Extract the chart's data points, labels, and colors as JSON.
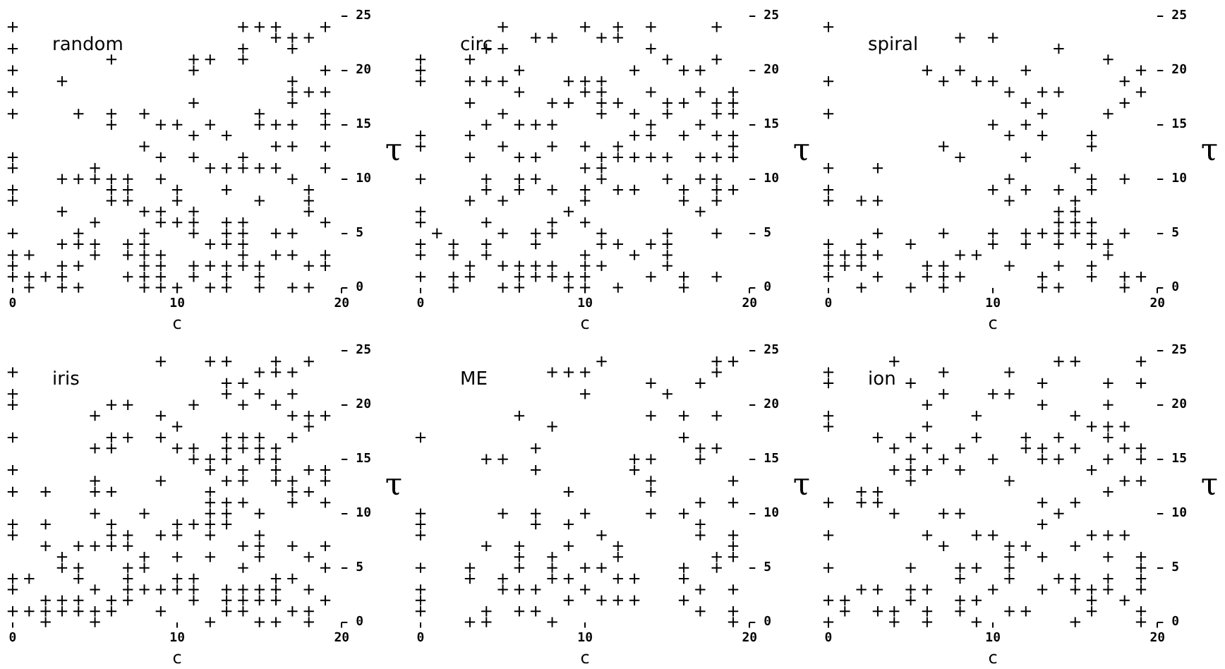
{
  "chart_data": [
    {
      "type": "scatter",
      "title": "random",
      "xlabel": "c",
      "ylabel": "τ",
      "color": "#000000",
      "marker": "cross",
      "grid": false,
      "xlim": [
        0,
        20
      ],
      "xticks": [
        0,
        10,
        20
      ],
      "ylim": [
        0,
        25
      ],
      "yticks": [
        0,
        5,
        10,
        15,
        20,
        25
      ],
      "x": [
        0,
        14,
        15,
        16,
        19,
        16,
        17,
        18,
        0,
        14,
        17,
        6,
        11,
        12,
        14,
        0,
        11,
        19,
        3,
        17,
        0,
        17,
        18,
        19,
        11,
        17,
        0,
        4,
        6,
        8,
        15,
        19,
        6,
        9,
        10,
        12,
        15,
        16,
        17,
        19,
        11,
        13,
        8,
        16,
        17,
        19,
        0,
        9,
        11,
        14,
        0,
        5,
        12,
        13,
        14,
        15,
        16,
        19,
        3,
        4,
        5,
        6,
        7,
        9,
        17,
        0,
        6,
        7,
        10,
        13,
        18,
        0,
        6,
        7,
        10,
        15,
        18,
        3,
        8,
        9,
        11,
        18,
        5,
        9,
        10,
        11,
        13,
        14,
        19,
        0,
        4,
        8,
        11,
        13,
        14,
        16,
        17,
        3,
        4,
        5,
        7,
        8,
        12,
        13,
        14,
        0,
        1,
        5,
        7,
        8,
        9,
        14,
        16,
        17,
        19,
        0,
        3,
        4,
        8,
        9,
        11,
        12,
        13,
        14,
        15,
        18,
        19,
        0,
        1,
        2,
        3,
        7,
        8,
        9,
        11,
        13,
        15,
        1,
        3,
        4,
        8,
        9,
        10,
        12,
        13,
        15,
        17,
        18
      ],
      "values": [
        24,
        24,
        24,
        24,
        24,
        23,
        23,
        23,
        22,
        22,
        22,
        21,
        21,
        21,
        21,
        20,
        20,
        20,
        19,
        19,
        18,
        18,
        18,
        18,
        17,
        17,
        16,
        16,
        16,
        16,
        16,
        16,
        15,
        15,
        15,
        15,
        15,
        15,
        15,
        15,
        14,
        14,
        13,
        13,
        13,
        13,
        12,
        12,
        12,
        12,
        11,
        11,
        11,
        11,
        11,
        11,
        11,
        11,
        10,
        10,
        10,
        10,
        10,
        10,
        10,
        9,
        9,
        9,
        9,
        9,
        9,
        8,
        8,
        8,
        8,
        8,
        8,
        7,
        7,
        7,
        7,
        7,
        6,
        6,
        6,
        6,
        6,
        6,
        6,
        5,
        5,
        5,
        5,
        5,
        5,
        5,
        5,
        4,
        4,
        4,
        4,
        4,
        4,
        4,
        4,
        3,
        3,
        3,
        3,
        3,
        3,
        3,
        3,
        3,
        3,
        2,
        2,
        2,
        2,
        2,
        2,
        2,
        2,
        2,
        2,
        2,
        2,
        1,
        1,
        1,
        1,
        1,
        1,
        1,
        1,
        1,
        1,
        0,
        0,
        0,
        0,
        0,
        0,
        0,
        0,
        0,
        0,
        0
      ]
    },
    {
      "type": "scatter",
      "title": "circ",
      "xlabel": "c",
      "ylabel": "τ",
      "color": "#000000",
      "marker": "cross",
      "grid": false,
      "xlim": [
        0,
        20
      ],
      "xticks": [
        0,
        10,
        20
      ],
      "ylim": [
        0,
        25
      ],
      "yticks": [
        0,
        5,
        10,
        15,
        20,
        25
      ],
      "x": [
        5,
        10,
        12,
        14,
        18,
        7,
        8,
        11,
        12,
        4,
        5,
        14,
        0,
        3,
        15,
        18,
        0,
        6,
        13,
        16,
        17,
        0,
        3,
        4,
        5,
        9,
        10,
        11,
        6,
        10,
        11,
        14,
        17,
        19,
        3,
        8,
        9,
        11,
        12,
        15,
        16,
        18,
        19,
        5,
        11,
        13,
        15,
        18,
        19,
        4,
        6,
        7,
        8,
        14,
        17,
        0,
        3,
        13,
        14,
        16,
        18,
        19,
        0,
        5,
        8,
        10,
        12,
        19,
        3,
        6,
        7,
        11,
        12,
        13,
        14,
        15,
        17,
        18,
        19,
        10,
        11,
        0,
        4,
        6,
        7,
        11,
        15,
        17,
        18,
        4,
        6,
        8,
        10,
        12,
        13,
        16,
        18,
        19,
        3,
        5,
        10,
        16,
        18,
        0,
        9,
        17,
        0,
        4,
        8,
        10,
        1,
        5,
        7,
        8,
        11,
        15,
        18,
        0,
        2,
        4,
        7,
        11,
        12,
        14,
        15,
        0,
        2,
        4,
        10,
        13,
        15,
        3,
        5,
        6,
        7,
        8,
        10,
        11,
        15,
        0,
        2,
        3,
        6,
        7,
        8,
        9,
        10,
        14,
        16,
        18,
        2,
        5,
        6,
        9,
        10,
        12,
        16
      ],
      "values": [
        24,
        24,
        24,
        24,
        24,
        23,
        23,
        23,
        23,
        22,
        22,
        22,
        21,
        21,
        21,
        21,
        20,
        20,
        20,
        20,
        20,
        19,
        19,
        19,
        19,
        19,
        19,
        19,
        18,
        18,
        18,
        18,
        18,
        18,
        17,
        17,
        17,
        17,
        17,
        17,
        17,
        17,
        17,
        16,
        16,
        16,
        16,
        16,
        16,
        15,
        15,
        15,
        15,
        15,
        15,
        14,
        14,
        14,
        14,
        14,
        14,
        14,
        13,
        13,
        13,
        13,
        13,
        13,
        12,
        12,
        12,
        12,
        12,
        12,
        12,
        12,
        12,
        12,
        12,
        11,
        11,
        10,
        10,
        10,
        10,
        10,
        10,
        10,
        10,
        9,
        9,
        9,
        9,
        9,
        9,
        9,
        9,
        9,
        8,
        8,
        8,
        8,
        8,
        7,
        7,
        7,
        6,
        6,
        6,
        6,
        5,
        5,
        5,
        5,
        5,
        5,
        5,
        4,
        4,
        4,
        4,
        4,
        4,
        4,
        4,
        3,
        3,
        3,
        3,
        3,
        3,
        2,
        2,
        2,
        2,
        2,
        2,
        2,
        2,
        1,
        1,
        1,
        1,
        1,
        1,
        1,
        1,
        1,
        1,
        1,
        0,
        0,
        0,
        0,
        0,
        0,
        0
      ]
    },
    {
      "type": "scatter",
      "title": "spiral",
      "xlabel": "c",
      "ylabel": "τ",
      "color": "#000000",
      "marker": "cross",
      "grid": false,
      "xlim": [
        0,
        20
      ],
      "xticks": [
        0,
        10,
        20
      ],
      "ylim": [
        0,
        25
      ],
      "yticks": [
        0,
        5,
        10,
        15,
        20,
        25
      ],
      "x": [
        0,
        8,
        10,
        14,
        17,
        6,
        8,
        12,
        19,
        0,
        7,
        9,
        10,
        18,
        11,
        13,
        14,
        19,
        12,
        18,
        0,
        13,
        17,
        10,
        12,
        11,
        13,
        16,
        7,
        16,
        8,
        12,
        0,
        3,
        15,
        11,
        16,
        18,
        0,
        10,
        12,
        14,
        16,
        0,
        2,
        3,
        11,
        15,
        14,
        15,
        14,
        15,
        16,
        3,
        7,
        10,
        12,
        13,
        14,
        15,
        16,
        18,
        0,
        2,
        5,
        10,
        12,
        14,
        16,
        17,
        0,
        1,
        2,
        3,
        8,
        9,
        17,
        0,
        1,
        2,
        6,
        7,
        11,
        14,
        16,
        0,
        3,
        6,
        7,
        8,
        13,
        16,
        18,
        19,
        2,
        5,
        7,
        13,
        14,
        18
      ],
      "values": [
        24,
        23,
        23,
        22,
        21,
        20,
        20,
        20,
        20,
        19,
        19,
        19,
        19,
        19,
        18,
        18,
        18,
        18,
        17,
        17,
        16,
        16,
        16,
        15,
        15,
        14,
        14,
        14,
        13,
        13,
        12,
        12,
        11,
        11,
        11,
        10,
        10,
        10,
        9,
        9,
        9,
        9,
        9,
        8,
        8,
        8,
        8,
        8,
        7,
        7,
        6,
        6,
        6,
        5,
        5,
        5,
        5,
        5,
        5,
        5,
        5,
        5,
        4,
        4,
        4,
        4,
        4,
        4,
        4,
        4,
        3,
        3,
        3,
        3,
        3,
        3,
        3,
        2,
        2,
        2,
        2,
        2,
        2,
        2,
        2,
        1,
        1,
        1,
        1,
        1,
        1,
        1,
        1,
        1,
        0,
        0,
        0,
        0,
        0,
        0
      ]
    },
    {
      "type": "scatter",
      "title": "iris",
      "xlabel": "c",
      "ylabel": "τ",
      "color": "#000000",
      "marker": "cross",
      "grid": false,
      "xlim": [
        0,
        20
      ],
      "xticks": [
        0,
        10,
        20
      ],
      "ylim": [
        0,
        25
      ],
      "yticks": [
        0,
        5,
        10,
        15,
        20,
        25
      ],
      "x": [
        9,
        12,
        13,
        16,
        18,
        0,
        15,
        16,
        17,
        13,
        14,
        0,
        13,
        15,
        17,
        0,
        6,
        7,
        11,
        14,
        16,
        5,
        9,
        17,
        18,
        19,
        10,
        18,
        0,
        6,
        7,
        9,
        13,
        14,
        15,
        17,
        5,
        6,
        10,
        11,
        13,
        14,
        15,
        16,
        11,
        12,
        13,
        15,
        16,
        0,
        12,
        14,
        16,
        18,
        19,
        5,
        9,
        13,
        14,
        16,
        17,
        19,
        0,
        2,
        5,
        6,
        12,
        17,
        18,
        12,
        13,
        14,
        17,
        19,
        5,
        8,
        12,
        13,
        15,
        0,
        2,
        6,
        10,
        11,
        12,
        13,
        0,
        6,
        7,
        9,
        10,
        12,
        15,
        2,
        4,
        5,
        6,
        7,
        14,
        15,
        17,
        19,
        3,
        8,
        10,
        12,
        15,
        18,
        3,
        4,
        7,
        8,
        14,
        19,
        0,
        1,
        4,
        7,
        10,
        11,
        16,
        17,
        0,
        5,
        7,
        8,
        9,
        10,
        11,
        13,
        14,
        15,
        16,
        18,
        2,
        3,
        4,
        6,
        7,
        11,
        13,
        14,
        15,
        16,
        19,
        0,
        1,
        2,
        3,
        4,
        5,
        6,
        9,
        13,
        14,
        17,
        18,
        2,
        5,
        12,
        15,
        16,
        18
      ],
      "values": [
        24,
        24,
        24,
        24,
        24,
        23,
        23,
        23,
        23,
        22,
        22,
        21,
        21,
        21,
        21,
        20,
        20,
        20,
        20,
        20,
        20,
        19,
        19,
        19,
        19,
        19,
        18,
        18,
        17,
        17,
        17,
        17,
        17,
        17,
        17,
        17,
        16,
        16,
        16,
        16,
        16,
        16,
        16,
        16,
        15,
        15,
        15,
        15,
        15,
        14,
        14,
        14,
        14,
        14,
        14,
        13,
        13,
        13,
        13,
        13,
        13,
        13,
        12,
        12,
        12,
        12,
        12,
        12,
        12,
        11,
        11,
        11,
        11,
        11,
        10,
        10,
        10,
        10,
        10,
        9,
        9,
        9,
        9,
        9,
        9,
        9,
        8,
        8,
        8,
        8,
        8,
        8,
        8,
        7,
        7,
        7,
        7,
        7,
        7,
        7,
        7,
        7,
        6,
        6,
        6,
        6,
        6,
        6,
        5,
        5,
        5,
        5,
        5,
        5,
        4,
        4,
        4,
        4,
        4,
        4,
        4,
        4,
        3,
        3,
        3,
        3,
        3,
        3,
        3,
        3,
        3,
        3,
        3,
        3,
        2,
        2,
        2,
        2,
        2,
        2,
        2,
        2,
        2,
        2,
        2,
        1,
        1,
        1,
        1,
        1,
        1,
        1,
        1,
        1,
        1,
        1,
        1,
        0,
        0,
        0,
        0,
        0,
        0
      ]
    },
    {
      "type": "scatter",
      "title": "ME",
      "xlabel": "c",
      "ylabel": "τ",
      "color": "#000000",
      "marker": "cross",
      "grid": false,
      "xlim": [
        0,
        20
      ],
      "xticks": [
        0,
        10,
        20
      ],
      "ylim": [
        0,
        25
      ],
      "yticks": [
        0,
        5,
        10,
        15,
        20,
        25
      ],
      "x": [
        11,
        18,
        19,
        8,
        9,
        10,
        18,
        14,
        17,
        10,
        15,
        6,
        14,
        16,
        18,
        8,
        0,
        16,
        7,
        17,
        18,
        4,
        5,
        13,
        14,
        17,
        7,
        13,
        14,
        19,
        9,
        14,
        17,
        19,
        0,
        5,
        7,
        10,
        14,
        16,
        0,
        7,
        9,
        17,
        0,
        11,
        17,
        19,
        4,
        6,
        9,
        12,
        19,
        6,
        8,
        12,
        18,
        19,
        0,
        3,
        6,
        8,
        10,
        11,
        16,
        18,
        3,
        5,
        8,
        9,
        12,
        13,
        16,
        0,
        5,
        6,
        7,
        10,
        17,
        19,
        0,
        9,
        11,
        12,
        13,
        16,
        0,
        4,
        6,
        7,
        17,
        19,
        3,
        4,
        8,
        19
      ],
      "values": [
        24,
        24,
        24,
        23,
        23,
        23,
        23,
        22,
        22,
        21,
        21,
        19,
        19,
        19,
        19,
        18,
        17,
        17,
        16,
        16,
        16,
        15,
        15,
        15,
        15,
        15,
        14,
        14,
        13,
        13,
        12,
        12,
        11,
        11,
        10,
        10,
        10,
        10,
        10,
        10,
        9,
        9,
        9,
        9,
        8,
        8,
        8,
        8,
        7,
        7,
        7,
        7,
        7,
        6,
        6,
        6,
        6,
        6,
        5,
        5,
        5,
        5,
        5,
        5,
        5,
        5,
        4,
        4,
        4,
        4,
        4,
        4,
        4,
        3,
        3,
        3,
        3,
        3,
        3,
        3,
        2,
        2,
        2,
        2,
        2,
        2,
        1,
        1,
        1,
        1,
        1,
        1,
        0,
        0,
        0,
        0
      ]
    },
    {
      "type": "scatter",
      "title": "ion",
      "xlabel": "c",
      "ylabel": "τ",
      "color": "#000000",
      "marker": "cross",
      "grid": false,
      "xlim": [
        0,
        20
      ],
      "xticks": [
        0,
        10,
        20
      ],
      "ylim": [
        0,
        25
      ],
      "yticks": [
        0,
        5,
        10,
        15,
        20,
        25
      ],
      "x": [
        4,
        14,
        15,
        19,
        0,
        7,
        11,
        0,
        5,
        13,
        17,
        19,
        7,
        10,
        11,
        6,
        13,
        17,
        0,
        9,
        15,
        0,
        6,
        16,
        17,
        18,
        3,
        5,
        9,
        12,
        14,
        17,
        4,
        6,
        8,
        12,
        13,
        15,
        18,
        19,
        5,
        7,
        10,
        13,
        14,
        17,
        19,
        4,
        5,
        6,
        8,
        16,
        5,
        11,
        18,
        19,
        2,
        3,
        17,
        0,
        2,
        3,
        13,
        15,
        4,
        7,
        8,
        14,
        13,
        0,
        6,
        9,
        10,
        16,
        17,
        18,
        7,
        11,
        12,
        15,
        11,
        13,
        17,
        19,
        0,
        5,
        8,
        9,
        11,
        19,
        8,
        11,
        14,
        15,
        17,
        19,
        2,
        3,
        5,
        6,
        10,
        13,
        15,
        16,
        17,
        19,
        0,
        1,
        5,
        8,
        9,
        16,
        18,
        1,
        3,
        4,
        6,
        8,
        11,
        12,
        16,
        19,
        0,
        4,
        6,
        9,
        15,
        19
      ],
      "values": [
        24,
        24,
        24,
        24,
        23,
        23,
        23,
        22,
        22,
        22,
        22,
        22,
        21,
        21,
        21,
        20,
        20,
        20,
        19,
        19,
        19,
        18,
        18,
        18,
        18,
        18,
        17,
        17,
        17,
        17,
        17,
        17,
        16,
        16,
        16,
        16,
        16,
        16,
        16,
        16,
        15,
        15,
        15,
        15,
        15,
        15,
        15,
        14,
        14,
        14,
        14,
        14,
        13,
        13,
        13,
        13,
        12,
        12,
        12,
        11,
        11,
        11,
        11,
        11,
        10,
        10,
        10,
        10,
        9,
        8,
        8,
        8,
        8,
        8,
        8,
        8,
        7,
        7,
        7,
        7,
        6,
        6,
        6,
        6,
        5,
        5,
        5,
        5,
        5,
        5,
        4,
        4,
        4,
        4,
        4,
        4,
        3,
        3,
        3,
        3,
        3,
        3,
        3,
        3,
        3,
        3,
        2,
        2,
        2,
        2,
        2,
        2,
        2,
        1,
        1,
        1,
        1,
        1,
        1,
        1,
        1,
        1,
        0,
        0,
        0,
        0,
        0,
        0
      ]
    }
  ]
}
